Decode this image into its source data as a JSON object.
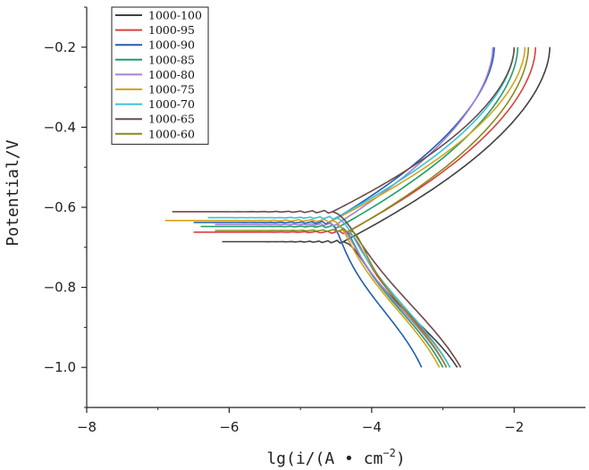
{
  "chart_data": {
    "type": "line",
    "title": "",
    "xlabel": "lg(i/(A • cm^-2)",
    "xlabel_parts": {
      "main": "lg(i/(A • cm",
      "sup": "−2",
      "close": ")"
    },
    "ylabel": "Potential/V",
    "xlim": [
      -8,
      -1
    ],
    "ylim": [
      -1.1,
      -0.1
    ],
    "xticks": [
      -8,
      -6,
      -4,
      -2
    ],
    "xtick_labels": [
      "−8",
      "−6",
      "−4",
      "−2"
    ],
    "yticks": [
      -1.0,
      -0.8,
      -0.6,
      -0.4,
      -0.2
    ],
    "ytick_labels": [
      "−1.0",
      "−0.8",
      "−0.6",
      "−0.4",
      "−0.2"
    ],
    "grid": false,
    "legend_position": "top-left",
    "series": [
      {
        "name": "1000-100",
        "color": "#404040",
        "Ecorr": -0.686,
        "lgicorr": -4.4,
        "start_lg": -6.1,
        "cathodic_mid": -3.55,
        "anodic_end_lg": -1.5
      },
      {
        "name": "1000-95",
        "color": "#d9403f",
        "Ecorr": -0.662,
        "lgicorr": -4.35,
        "start_lg": -6.5,
        "cathodic_mid": -3.65,
        "anodic_end_lg": -1.7
      },
      {
        "name": "1000-90",
        "color": "#1f5fae",
        "Ecorr": -0.638,
        "lgicorr": -4.6,
        "start_lg": -6.5,
        "cathodic_mid": -4.05,
        "anodic_end_lg": -2.28
      },
      {
        "name": "1000-85",
        "color": "#1f9e6a",
        "Ecorr": -0.648,
        "lgicorr": -4.45,
        "start_lg": -6.4,
        "cathodic_mid": -3.75,
        "anodic_end_lg": -1.95
      },
      {
        "name": "1000-80",
        "color": "#a77fd6",
        "Ecorr": -0.643,
        "lgicorr": -4.5,
        "start_lg": -6.2,
        "cathodic_mid": -3.7,
        "anodic_end_lg": -2.3
      },
      {
        "name": "1000-75",
        "color": "#d7a21b",
        "Ecorr": -0.633,
        "lgicorr": -4.55,
        "start_lg": -6.9,
        "cathodic_mid": -3.8,
        "anodic_end_lg": -1.85
      },
      {
        "name": "1000-70",
        "color": "#36c3d6",
        "Ecorr": -0.626,
        "lgicorr": -4.5,
        "start_lg": -6.3,
        "cathodic_mid": -3.65,
        "anodic_end_lg": -2.0
      },
      {
        "name": "1000-65",
        "color": "#6e4a4a",
        "Ecorr": -0.611,
        "lgicorr": -4.55,
        "start_lg": -6.8,
        "cathodic_mid": -3.5,
        "anodic_end_lg": -2.0
      },
      {
        "name": "1000-60",
        "color": "#8a8a1e",
        "Ecorr": -0.658,
        "lgicorr": -4.3,
        "start_lg": -6.2,
        "cathodic_mid": -3.7,
        "anodic_end_lg": -1.8
      }
    ]
  }
}
